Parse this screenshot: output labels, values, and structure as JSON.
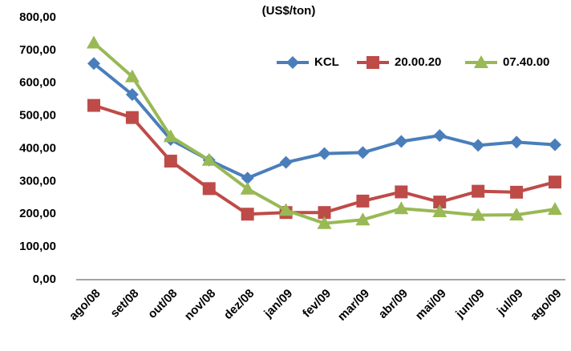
{
  "chart_data": {
    "type": "line",
    "title": "(US$/ton)",
    "categories": [
      "ago/08",
      "set/08",
      "out/08",
      "nov/08",
      "dez/08",
      "jan/09",
      "fev/09",
      "mar/09",
      "abr/09",
      "mai/09",
      "jun/09",
      "jul/09",
      "ago/09"
    ],
    "series": [
      {
        "name": "KCL",
        "color": "#4a7ebb",
        "marker": "diamond",
        "values": [
          660,
          565,
          428,
          365,
          310,
          358,
          385,
          388,
          422,
          440,
          410,
          420,
          412
        ]
      },
      {
        "name": "20.00.20",
        "color": "#be4b48",
        "marker": "square",
        "values": [
          532,
          495,
          362,
          278,
          200,
          205,
          205,
          240,
          268,
          237,
          270,
          267,
          298
        ]
      },
      {
        "name": "07.40.00",
        "color": "#98b954",
        "marker": "triangle",
        "values": [
          723,
          620,
          437,
          365,
          277,
          212,
          172,
          183,
          217,
          208,
          197,
          198,
          215
        ]
      }
    ],
    "ylim": [
      0,
      800
    ],
    "yticks": [
      {
        "value": 0,
        "label": "0,00"
      },
      {
        "value": 100,
        "label": "100,00"
      },
      {
        "value": 200,
        "label": "200,00"
      },
      {
        "value": 300,
        "label": "300,00"
      },
      {
        "value": 400,
        "label": "400,00"
      },
      {
        "value": 500,
        "label": "500,00"
      },
      {
        "value": 600,
        "label": "600,00"
      },
      {
        "value": 700,
        "label": "700,00"
      },
      {
        "value": 800,
        "label": "800,00"
      }
    ],
    "grid": false,
    "legend": "top-right"
  }
}
